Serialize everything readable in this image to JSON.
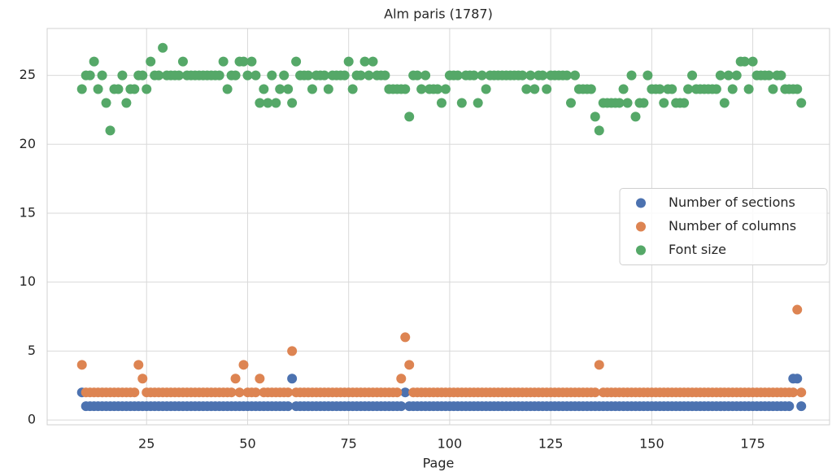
{
  "chart_data": {
    "type": "scatter",
    "title": "Alm paris (1787)",
    "x_label": "Page",
    "x": [
      9,
      10,
      11,
      12,
      13,
      14,
      15,
      16,
      17,
      18,
      19,
      20,
      21,
      22,
      23,
      24,
      25,
      26,
      27,
      28,
      29,
      30,
      31,
      32,
      33,
      34,
      35,
      36,
      37,
      38,
      39,
      40,
      41,
      42,
      43,
      44,
      45,
      46,
      47,
      48,
      49,
      50,
      51,
      52,
      53,
      54,
      55,
      56,
      57,
      58,
      59,
      60,
      61,
      62,
      63,
      64,
      65,
      66,
      67,
      68,
      69,
      70,
      71,
      72,
      73,
      74,
      75,
      76,
      77,
      78,
      79,
      80,
      81,
      82,
      83,
      84,
      85,
      86,
      87,
      88,
      89,
      90,
      91,
      92,
      93,
      94,
      95,
      96,
      97,
      98,
      99,
      100,
      101,
      102,
      103,
      104,
      105,
      106,
      107,
      108,
      109,
      110,
      111,
      112,
      113,
      114,
      115,
      116,
      117,
      118,
      119,
      120,
      121,
      122,
      123,
      124,
      125,
      126,
      127,
      128,
      129,
      130,
      131,
      132,
      133,
      134,
      135,
      136,
      137,
      138,
      139,
      140,
      141,
      142,
      143,
      144,
      145,
      146,
      147,
      148,
      149,
      150,
      151,
      152,
      153,
      154,
      155,
      156,
      157,
      158,
      159,
      160,
      161,
      162,
      163,
      164,
      165,
      166,
      167,
      168,
      169,
      170,
      171,
      172,
      173,
      174,
      175,
      176,
      177,
      178,
      179,
      180,
      181,
      182,
      183,
      184,
      185,
      186,
      187
    ],
    "series": [
      {
        "name": "Number of sections",
        "color": "#4c72b0",
        "values": [
          2,
          1,
          1,
          1,
          1,
          1,
          1,
          1,
          1,
          1,
          1,
          1,
          1,
          1,
          1,
          1,
          1,
          1,
          1,
          1,
          1,
          1,
          1,
          1,
          1,
          1,
          1,
          1,
          1,
          1,
          1,
          1,
          1,
          1,
          1,
          1,
          1,
          1,
          1,
          1,
          1,
          1,
          1,
          1,
          1,
          1,
          1,
          1,
          1,
          1,
          1,
          1,
          3,
          1,
          1,
          1,
          1,
          1,
          1,
          1,
          1,
          1,
          1,
          1,
          1,
          1,
          1,
          1,
          1,
          1,
          1,
          1,
          1,
          1,
          1,
          1,
          1,
          1,
          1,
          1,
          2,
          1,
          1,
          1,
          1,
          1,
          1,
          1,
          1,
          1,
          1,
          1,
          1,
          1,
          1,
          1,
          1,
          1,
          1,
          1,
          1,
          1,
          1,
          1,
          1,
          1,
          1,
          1,
          1,
          1,
          1,
          1,
          1,
          1,
          1,
          1,
          1,
          1,
          1,
          1,
          1,
          1,
          1,
          1,
          1,
          1,
          1,
          1,
          1,
          1,
          1,
          1,
          1,
          1,
          1,
          1,
          1,
          1,
          1,
          1,
          1,
          1,
          1,
          1,
          1,
          1,
          1,
          1,
          1,
          1,
          1,
          1,
          1,
          1,
          1,
          1,
          1,
          1,
          1,
          1,
          1,
          1,
          1,
          1,
          1,
          1,
          1,
          1,
          1,
          1,
          1,
          1,
          1,
          1,
          1,
          1,
          3,
          3,
          1
        ]
      },
      {
        "name": "Number of columns",
        "color": "#dd8452",
        "values": [
          4,
          2,
          2,
          2,
          2,
          2,
          2,
          2,
          2,
          2,
          2,
          2,
          2,
          2,
          4,
          3,
          2,
          2,
          2,
          2,
          2,
          2,
          2,
          2,
          2,
          2,
          2,
          2,
          2,
          2,
          2,
          2,
          2,
          2,
          2,
          2,
          2,
          2,
          3,
          2,
          4,
          2,
          2,
          2,
          3,
          2,
          2,
          2,
          2,
          2,
          2,
          2,
          5,
          2,
          2,
          2,
          2,
          2,
          2,
          2,
          2,
          2,
          2,
          2,
          2,
          2,
          2,
          2,
          2,
          2,
          2,
          2,
          2,
          2,
          2,
          2,
          2,
          2,
          2,
          3,
          6,
          4,
          2,
          2,
          2,
          2,
          2,
          2,
          2,
          2,
          2,
          2,
          2,
          2,
          2,
          2,
          2,
          2,
          2,
          2,
          2,
          2,
          2,
          2,
          2,
          2,
          2,
          2,
          2,
          2,
          2,
          2,
          2,
          2,
          2,
          2,
          2,
          2,
          2,
          2,
          2,
          2,
          2,
          2,
          2,
          2,
          2,
          2,
          4,
          2,
          2,
          2,
          2,
          2,
          2,
          2,
          2,
          2,
          2,
          2,
          2,
          2,
          2,
          2,
          2,
          2,
          2,
          2,
          2,
          2,
          2,
          2,
          2,
          2,
          2,
          2,
          2,
          2,
          2,
          2,
          2,
          2,
          2,
          2,
          2,
          2,
          2,
          2,
          2,
          2,
          2,
          2,
          2,
          2,
          2,
          2,
          2,
          8,
          2
        ]
      },
      {
        "name": "Font size",
        "color": "#55a868",
        "values": [
          24,
          25,
          25,
          26,
          24,
          25,
          23,
          21,
          24,
          24,
          25,
          23,
          24,
          24,
          25,
          25,
          24,
          26,
          25,
          25,
          27,
          25,
          25,
          25,
          25,
          26,
          25,
          25,
          25,
          25,
          25,
          25,
          25,
          25,
          25,
          26,
          24,
          25,
          25,
          26,
          26,
          25,
          26,
          25,
          23,
          24,
          23,
          25,
          23,
          24,
          25,
          24,
          23,
          26,
          25,
          25,
          25,
          24,
          25,
          25,
          25,
          24,
          25,
          25,
          25,
          25,
          26,
          24,
          25,
          25,
          26,
          25,
          26,
          25,
          25,
          25,
          24,
          24,
          24,
          24,
          24,
          22,
          25,
          25,
          24,
          25,
          24,
          24,
          24,
          23,
          24,
          25,
          25,
          25,
          23,
          25,
          25,
          25,
          23,
          25,
          24,
          25,
          25,
          25,
          25,
          25,
          25,
          25,
          25,
          25,
          24,
          25,
          24,
          25,
          25,
          24,
          25,
          25,
          25,
          25,
          25,
          23,
          25,
          24,
          24,
          24,
          24,
          22,
          21,
          23,
          23,
          23,
          23,
          23,
          24,
          23,
          25,
          22,
          23,
          23,
          25,
          24,
          24,
          24,
          23,
          24,
          24,
          23,
          23,
          23,
          24,
          25,
          24,
          24,
          24,
          24,
          24,
          24,
          25,
          23,
          25,
          24,
          25,
          26,
          26,
          24,
          26,
          25,
          25,
          25,
          25,
          24,
          25,
          25,
          24,
          24,
          24,
          24,
          23
        ]
      }
    ],
    "xlim": [
      0.4,
      194
    ],
    "ylim": [
      -0.35,
      28.4
    ],
    "xticks": [
      25,
      50,
      75,
      100,
      125,
      150,
      175
    ],
    "yticks": [
      0,
      5,
      10,
      15,
      20,
      25
    ],
    "grid": true,
    "legend": "center right"
  }
}
